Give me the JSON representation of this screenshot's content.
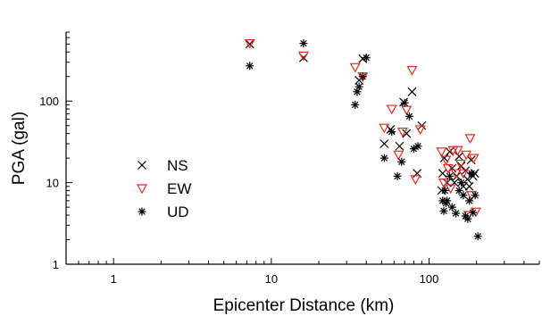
{
  "chart_data": {
    "type": "scatter",
    "title": "",
    "xlabel": "Epicenter Distance (km)",
    "ylabel": "PGA (gal)",
    "xscale": "log",
    "yscale": "log",
    "xlim": [
      0.5,
      500
    ],
    "ylim": [
      1,
      700
    ],
    "xticks": [
      1,
      10,
      100
    ],
    "xtick_labels": [
      "1",
      "10",
      "100"
    ],
    "yticks": [
      1,
      10,
      100
    ],
    "ytick_labels": [
      "1",
      "10",
      "100"
    ],
    "grid": false,
    "legend_position": "center-left",
    "series": [
      {
        "name": "NS",
        "marker": "x",
        "color": "#000000",
        "x": [
          7.3,
          16,
          36,
          38,
          52,
          57,
          65,
          69,
          72,
          78,
          84,
          90,
          120,
          122,
          125,
          130,
          135,
          140,
          145,
          150,
          155,
          160,
          165,
          170,
          175,
          180,
          185,
          190,
          195
        ],
        "y": [
          500,
          340,
          180,
          330,
          30,
          45,
          28,
          97,
          40,
          130,
          13,
          50,
          8,
          13,
          20,
          10,
          24,
          15,
          10,
          12,
          21,
          16,
          9,
          14,
          11,
          9,
          19,
          12,
          13
        ]
      },
      {
        "name": "EW",
        "marker": "triangle-down",
        "color": "#e8281c",
        "x": [
          7.3,
          16,
          34,
          38,
          52,
          58,
          64,
          68,
          72,
          78,
          82,
          88,
          120,
          124,
          128,
          132,
          137,
          142,
          148,
          152,
          158,
          165,
          172,
          178,
          182,
          186,
          192,
          198
        ],
        "y": [
          510,
          360,
          260,
          200,
          47,
          80,
          22,
          42,
          78,
          240,
          11,
          45,
          24,
          10,
          19,
          15,
          8.5,
          25,
          13,
          25,
          17,
          13,
          22,
          4,
          35,
          7,
          20,
          4.4
        ]
      },
      {
        "name": "UD",
        "marker": "asterisk",
        "color": "#000000",
        "x": [
          7.3,
          16,
          34,
          35,
          36,
          38,
          40,
          52,
          58,
          63,
          67,
          70,
          75,
          80,
          85,
          122,
          124,
          126,
          128,
          130,
          135,
          140,
          148,
          155,
          160,
          165,
          170,
          176,
          180,
          186,
          190,
          196,
          204
        ],
        "y": [
          270,
          510,
          90,
          130,
          150,
          200,
          340,
          20,
          42,
          12,
          18,
          95,
          65,
          26,
          28,
          6,
          4.5,
          8,
          5.6,
          6,
          12,
          5,
          4.2,
          8,
          10,
          7,
          3.9,
          3.6,
          6,
          13,
          4.3,
          7,
          2.2
        ]
      }
    ]
  }
}
